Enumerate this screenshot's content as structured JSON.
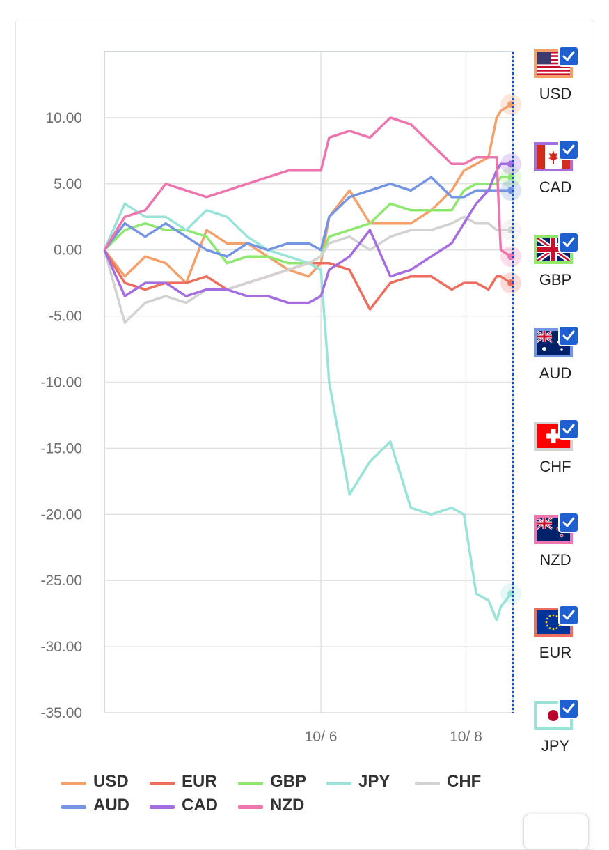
{
  "chart_data": {
    "type": "line",
    "ylim": [
      -35,
      15
    ],
    "yticks": [
      "10.00",
      "5.00",
      "0.00",
      "-5.00",
      "-10.00",
      "-15.00",
      "-20.00",
      "-25.00",
      "-30.00",
      "-35.00"
    ],
    "ytick_values": [
      10,
      5,
      0,
      -5,
      -10,
      -15,
      -20,
      -25,
      -30,
      -35
    ],
    "x_range": [
      0,
      100
    ],
    "xticks": [
      {
        "label": "10/ 6",
        "x": 53
      },
      {
        "label": "10/ 8",
        "x": 88.5
      }
    ],
    "x": [
      0,
      5,
      10,
      15,
      20,
      25,
      30,
      35,
      40,
      45,
      50,
      53,
      55,
      60,
      65,
      70,
      75,
      80,
      85,
      88,
      91,
      94,
      96,
      97,
      99.5
    ],
    "series": [
      {
        "name": "USD",
        "color": "#f4a06b",
        "values": [
          0,
          -2,
          -0.5,
          -1,
          -2.5,
          1.5,
          0.5,
          0.5,
          -0.5,
          -1.5,
          -2,
          -1,
          2.5,
          4.5,
          2,
          2,
          2,
          3,
          4.5,
          6,
          6.5,
          7,
          10,
          10.5,
          11
        ]
      },
      {
        "name": "EUR",
        "color": "#ee6e5e",
        "values": [
          0,
          -2.5,
          -3,
          -2.5,
          -2.5,
          -2,
          -3,
          -2.5,
          -2,
          -1.5,
          -1,
          -1,
          -1,
          -1.5,
          -4.5,
          -2.5,
          -2,
          -2,
          -3,
          -2.5,
          -2.5,
          -3,
          -2,
          -2,
          -2.5
        ]
      },
      {
        "name": "GBP",
        "color": "#8ee86f",
        "values": [
          0,
          1.5,
          2,
          1.5,
          1.5,
          1,
          -1,
          -0.5,
          -0.5,
          -1,
          -1,
          -0.5,
          1,
          1.5,
          2,
          3.5,
          3,
          3,
          3,
          4.5,
          5,
          5,
          5,
          5.5,
          5.5
        ]
      },
      {
        "name": "JPY",
        "color": "#99e3d9",
        "values": [
          0,
          3.5,
          2.5,
          2.5,
          1.5,
          3,
          2.5,
          1,
          0,
          -0.5,
          -1,
          -1.5,
          -10,
          -18.5,
          -16,
          -14.5,
          -19.5,
          -20,
          -19.5,
          -20,
          -26,
          -26.5,
          -28,
          -27,
          -26
        ]
      },
      {
        "name": "CHF",
        "color": "#d2d2d2",
        "values": [
          0,
          -5.5,
          -4,
          -3.5,
          -4,
          -3,
          -3,
          -2.5,
          -2,
          -1.5,
          -1,
          -0.5,
          0.5,
          1,
          0,
          1,
          1.5,
          1.5,
          2,
          2.5,
          2,
          2,
          1.5,
          1.5,
          1.5
        ]
      },
      {
        "name": "AUD",
        "color": "#7494e4",
        "values": [
          0,
          2,
          1,
          2,
          1,
          0,
          -0.5,
          0.5,
          0,
          0.5,
          0.5,
          0,
          2.5,
          4,
          4.5,
          5,
          4.5,
          5.5,
          4,
          4,
          4.5,
          4.5,
          4.5,
          4.5,
          4.5
        ]
      },
      {
        "name": "CAD",
        "color": "#a46de0",
        "values": [
          0,
          -3.5,
          -2.5,
          -2.5,
          -3.5,
          -3,
          -3,
          -3.5,
          -3.5,
          -4,
          -4,
          -3.5,
          -1.5,
          -0.5,
          1.5,
          -2,
          -1.5,
          -0.5,
          0.5,
          2,
          3.5,
          4.5,
          6,
          6.5,
          6.5
        ]
      },
      {
        "name": "NZD",
        "color": "#ee76ae",
        "values": [
          0,
          2.5,
          3,
          5,
          4.5,
          4,
          4.5,
          5,
          5.5,
          6,
          6,
          6,
          8.5,
          9,
          8.5,
          10,
          9.5,
          8,
          6.5,
          6.5,
          7,
          7,
          7,
          0,
          -0.5
        ]
      }
    ]
  },
  "legend": [
    {
      "name": "USD",
      "color": "#f4a06b"
    },
    {
      "name": "EUR",
      "color": "#ee6e5e"
    },
    {
      "name": "GBP",
      "color": "#8ee86f"
    },
    {
      "name": "JPY",
      "color": "#99e3d9"
    },
    {
      "name": "CHF",
      "color": "#d2d2d2"
    },
    {
      "name": "AUD",
      "color": "#7494e4"
    },
    {
      "name": "CAD",
      "color": "#a46de0"
    },
    {
      "name": "NZD",
      "color": "#ee76ae"
    }
  ],
  "currency_toggles": [
    {
      "code": "USD",
      "flag": "us-flag-icon",
      "border_color": "#f4a06b",
      "checked": true
    },
    {
      "code": "CAD",
      "flag": "canada-flag-icon",
      "border_color": "#a46de0",
      "checked": true
    },
    {
      "code": "GBP",
      "flag": "uk-flag-icon",
      "border_color": "#8ee86f",
      "checked": true
    },
    {
      "code": "AUD",
      "flag": "australia-flag-icon",
      "border_color": "#7494e4",
      "checked": true
    },
    {
      "code": "CHF",
      "flag": "swiss-flag-icon",
      "border_color": "#d2d2d2",
      "checked": true
    },
    {
      "code": "NZD",
      "flag": "new-zealand-flag-icon",
      "border_color": "#ee76ae",
      "checked": true
    },
    {
      "code": "EUR",
      "flag": "eu-flag-icon",
      "border_color": "#ee6e5e",
      "checked": true
    },
    {
      "code": "JPY",
      "flag": "japan-flag-icon",
      "border_color": "#99e3d9",
      "checked": true
    }
  ]
}
